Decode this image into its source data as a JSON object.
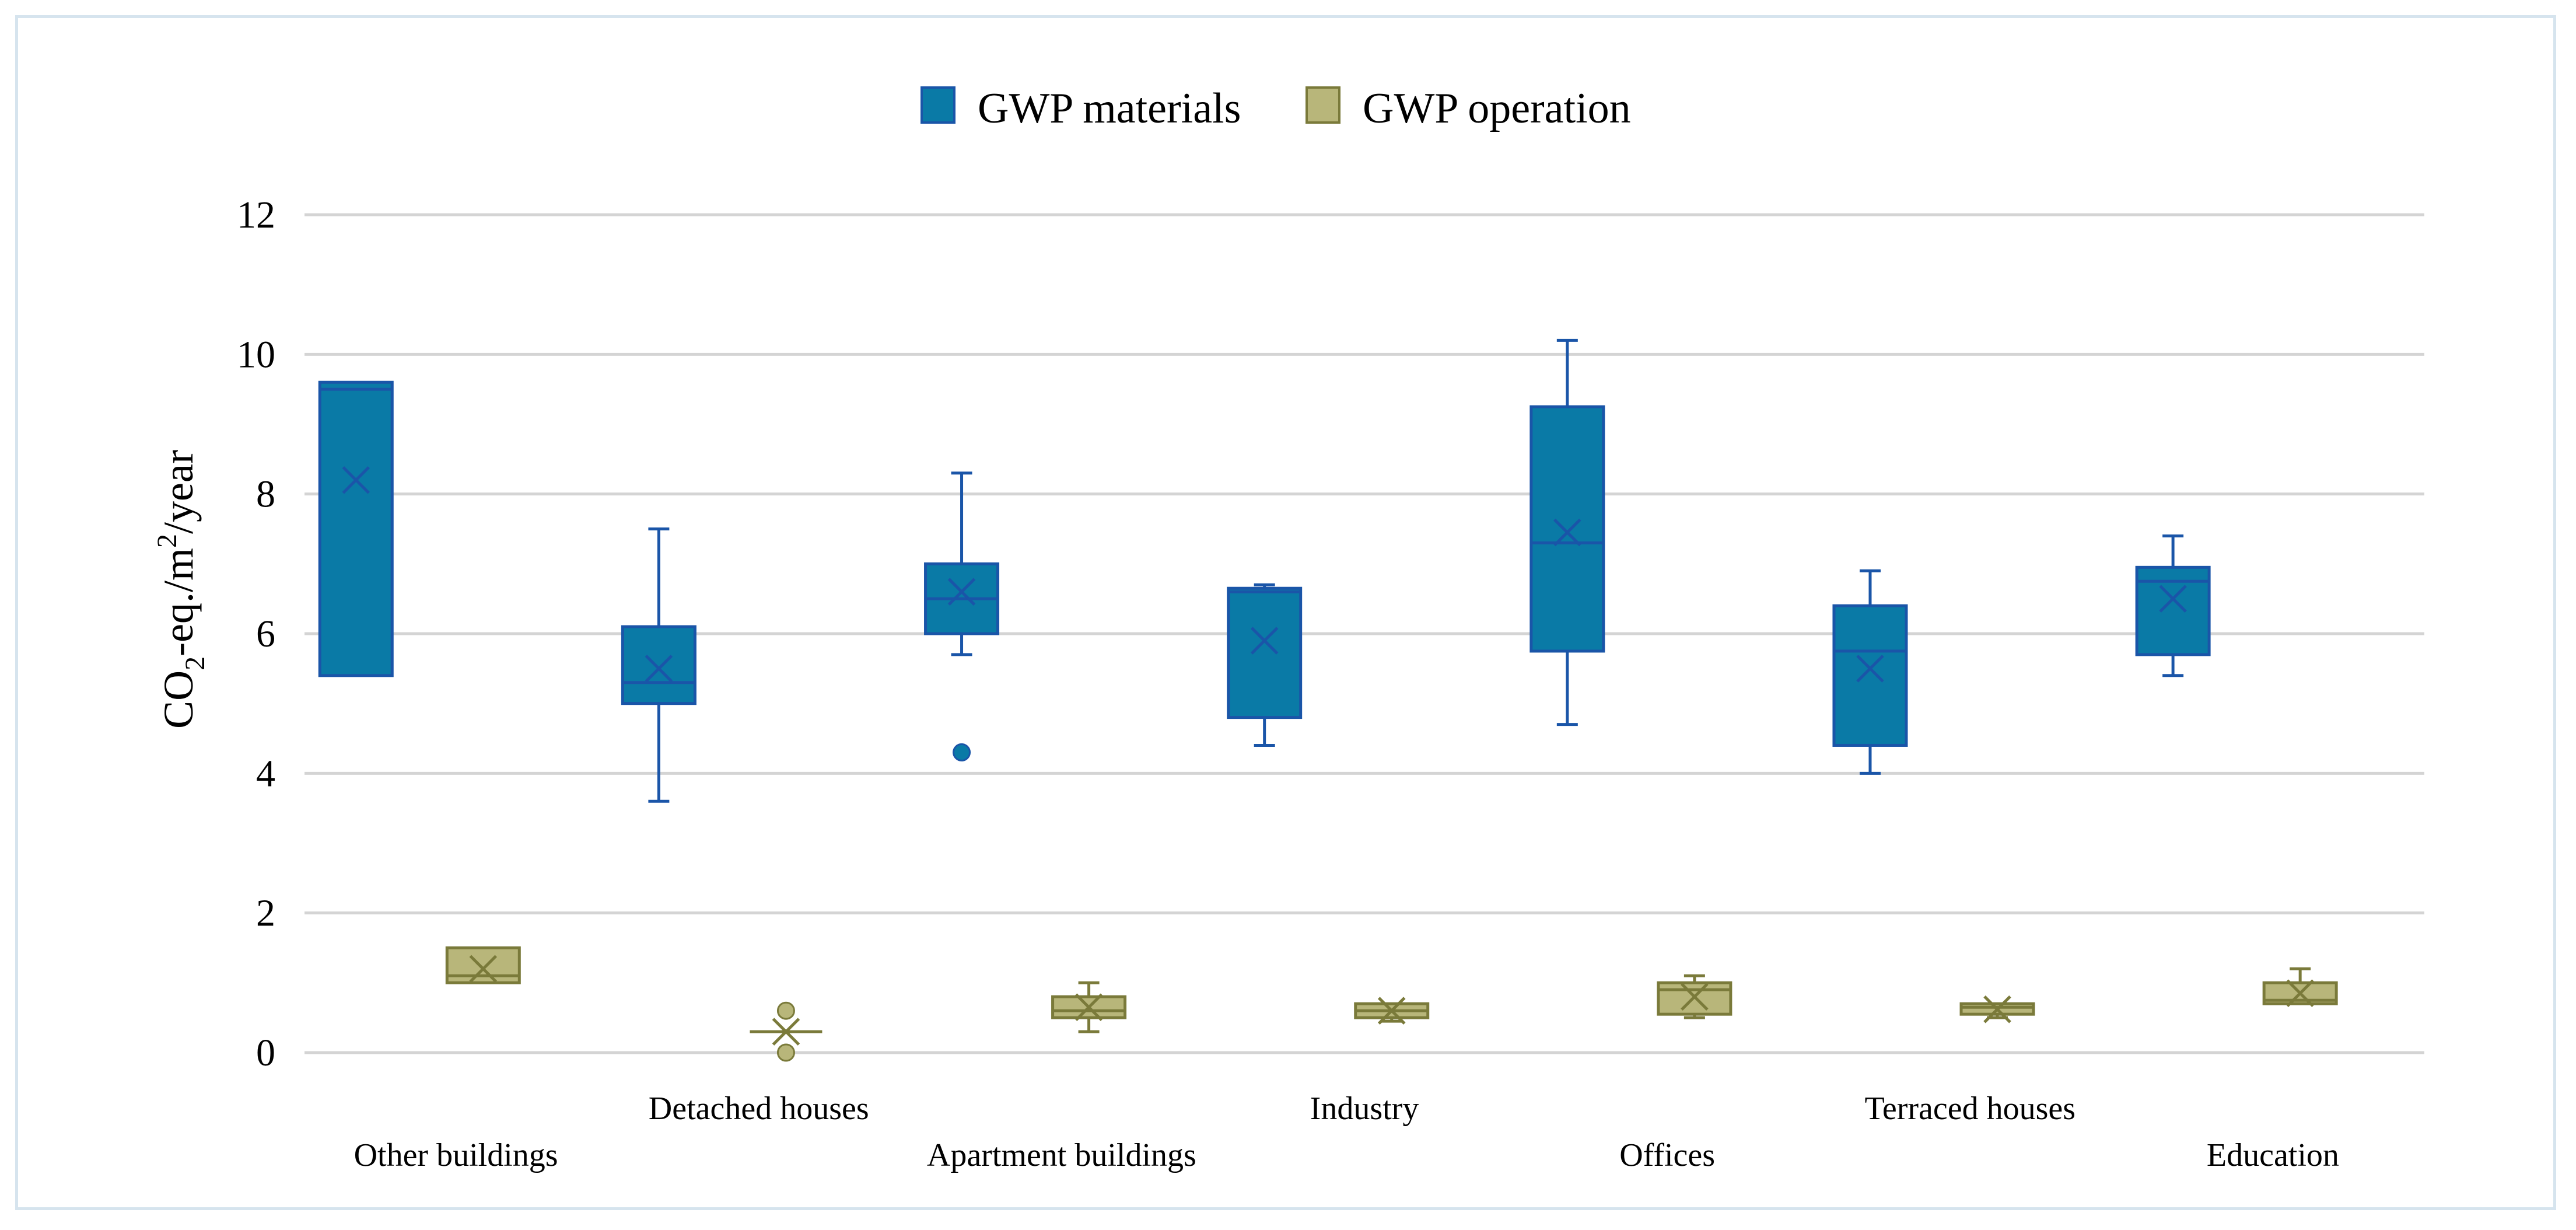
{
  "chart_data": {
    "type": "box",
    "title": "",
    "xlabel": "",
    "ylabel_parts": {
      "a": "CO",
      "a_sub": "2",
      "b": "-eq./m",
      "b_sup": "2",
      "c": "/year"
    },
    "ylim": [
      0,
      12
    ],
    "yticks": [
      "0",
      "2",
      "4",
      "6",
      "8",
      "10",
      "12"
    ],
    "legend": [
      {
        "name": "GWP materials",
        "color": "#0a7aa6",
        "stroke": "#1a55a8"
      },
      {
        "name": "GWP operation",
        "color": "#b8b67a",
        "stroke": "#7a7a3a"
      }
    ],
    "categories": [
      "Other buildings",
      "Detached houses",
      "Apartment buildings",
      "Industry",
      "Offices",
      "Terraced houses",
      "Education"
    ],
    "series": [
      {
        "name": "GWP materials",
        "boxes": [
          {
            "min": 5.4,
            "q1": 5.4,
            "median": 9.5,
            "q3": 9.6,
            "max": 9.6,
            "mean": 8.2,
            "outliers": []
          },
          {
            "min": 3.6,
            "q1": 5.0,
            "median": 5.3,
            "q3": 6.1,
            "max": 7.5,
            "mean": 5.5,
            "outliers": []
          },
          {
            "min": 5.7,
            "q1": 6.0,
            "median": 6.5,
            "q3": 7.0,
            "max": 8.3,
            "mean": 6.6,
            "outliers": [
              4.3
            ]
          },
          {
            "min": 4.4,
            "q1": 4.8,
            "median": 6.6,
            "q3": 6.65,
            "max": 6.7,
            "mean": 5.9,
            "outliers": []
          },
          {
            "min": 4.7,
            "q1": 5.75,
            "median": 7.3,
            "q3": 9.25,
            "max": 10.2,
            "mean": 7.45,
            "outliers": []
          },
          {
            "min": 4.0,
            "q1": 4.4,
            "median": 5.75,
            "q3": 6.4,
            "max": 6.9,
            "mean": 5.5,
            "outliers": []
          },
          {
            "min": 5.4,
            "q1": 5.7,
            "median": 6.75,
            "q3": 6.95,
            "max": 7.4,
            "mean": 6.5,
            "outliers": []
          }
        ]
      },
      {
        "name": "GWP operation",
        "boxes": [
          {
            "min": 1.0,
            "q1": 1.0,
            "median": 1.1,
            "q3": 1.5,
            "max": 1.5,
            "mean": 1.2,
            "outliers": []
          },
          {
            "min": 0.3,
            "q1": 0.3,
            "median": 0.3,
            "q3": 0.3,
            "max": 0.3,
            "mean": 0.3,
            "outliers": [
              0.6,
              0.0
            ]
          },
          {
            "min": 0.3,
            "q1": 0.5,
            "median": 0.6,
            "q3": 0.8,
            "max": 1.0,
            "mean": 0.65,
            "outliers": []
          },
          {
            "min": 0.45,
            "q1": 0.5,
            "median": 0.6,
            "q3": 0.7,
            "max": 0.7,
            "mean": 0.6,
            "outliers": []
          },
          {
            "min": 0.5,
            "q1": 0.55,
            "median": 0.9,
            "q3": 1.0,
            "max": 1.1,
            "mean": 0.8,
            "outliers": []
          },
          {
            "min": 0.5,
            "q1": 0.55,
            "median": 0.65,
            "q3": 0.7,
            "max": 0.7,
            "mean": 0.62,
            "outliers": []
          },
          {
            "min": 0.7,
            "q1": 0.7,
            "median": 0.75,
            "q3": 1.0,
            "max": 1.2,
            "mean": 0.85,
            "outliers": []
          }
        ]
      }
    ]
  }
}
